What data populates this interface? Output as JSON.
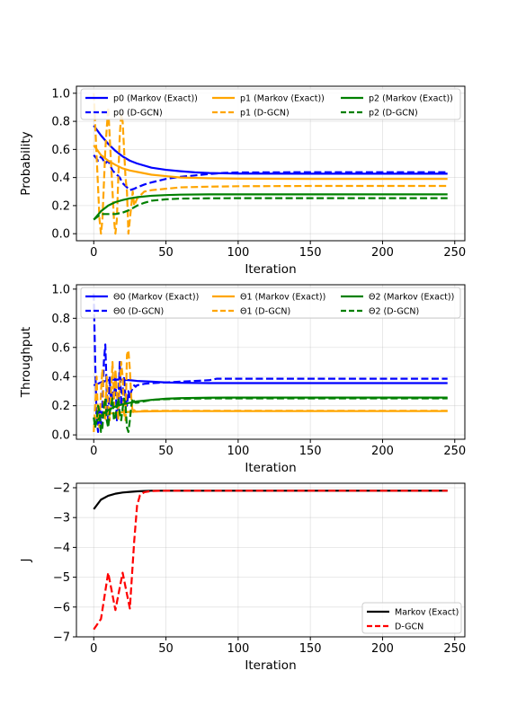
{
  "chart_data": [
    {
      "type": "line",
      "xlabel": "Iteration",
      "ylabel": "Probability",
      "xlim": [
        -12,
        257
      ],
      "ylim": [
        -0.05,
        1.05
      ],
      "xticks": [
        "0",
        "50",
        "100",
        "150",
        "200",
        "250"
      ],
      "yticks": [
        "0.0",
        "0.2",
        "0.4",
        "0.6",
        "0.8",
        "1.0"
      ],
      "grid": true,
      "legend_position": "top",
      "series": [
        {
          "name": "p0 (Markov (Exact))",
          "color": "#0000ff",
          "dash": "solid",
          "x": [
            0,
            5,
            10,
            15,
            20,
            25,
            30,
            40,
            50,
            60,
            70,
            80,
            100,
            150,
            200,
            245
          ],
          "values": [
            0.77,
            0.7,
            0.64,
            0.59,
            0.55,
            0.52,
            0.5,
            0.47,
            0.455,
            0.445,
            0.437,
            0.432,
            0.428,
            0.427,
            0.427,
            0.427
          ]
        },
        {
          "name": "p0 (D-GCN)",
          "color": "#0000ff",
          "dash": "dashed",
          "x": [
            0,
            3,
            5,
            8,
            10,
            13,
            15,
            18,
            20,
            23,
            25,
            28,
            30,
            35,
            40,
            50,
            60,
            70,
            80,
            90,
            100,
            150,
            200,
            245
          ],
          "values": [
            0.56,
            0.52,
            0.55,
            0.5,
            0.52,
            0.45,
            0.43,
            0.4,
            0.36,
            0.33,
            0.31,
            0.32,
            0.33,
            0.35,
            0.365,
            0.39,
            0.405,
            0.415,
            0.425,
            0.433,
            0.436,
            0.438,
            0.438,
            0.438
          ]
        },
        {
          "name": "p1 (Markov (Exact))",
          "color": "#ffa500",
          "dash": "solid",
          "x": [
            0,
            5,
            10,
            15,
            20,
            25,
            30,
            40,
            50,
            60,
            80,
            100,
            150,
            200,
            245
          ],
          "values": [
            0.63,
            0.56,
            0.52,
            0.49,
            0.465,
            0.45,
            0.44,
            0.42,
            0.41,
            0.4,
            0.395,
            0.392,
            0.39,
            0.39,
            0.39
          ]
        },
        {
          "name": "p1 (D-GCN)",
          "color": "#ffa500",
          "dash": "dashed",
          "x": [
            0,
            2,
            4,
            5,
            6,
            8,
            10,
            12,
            13,
            14,
            15,
            16,
            18,
            19,
            20,
            22,
            23,
            24,
            25,
            27,
            28,
            30,
            35,
            40,
            50,
            60,
            80,
            100,
            150,
            200,
            245
          ],
          "values": [
            1.0,
            0.55,
            0.1,
            0.0,
            0.1,
            0.6,
            0.9,
            0.5,
            0.3,
            0.1,
            0.0,
            0.1,
            0.7,
            0.85,
            0.8,
            0.4,
            0.3,
            0.0,
            0.1,
            0.3,
            0.2,
            0.25,
            0.3,
            0.31,
            0.32,
            0.33,
            0.335,
            0.338,
            0.34,
            0.34,
            0.34
          ]
        },
        {
          "name": "p2 (Markov (Exact))",
          "color": "#008000",
          "dash": "solid",
          "x": [
            0,
            5,
            10,
            15,
            20,
            25,
            30,
            40,
            50,
            60,
            80,
            100,
            150,
            200,
            245
          ],
          "values": [
            0.1,
            0.16,
            0.2,
            0.225,
            0.24,
            0.252,
            0.26,
            0.27,
            0.275,
            0.278,
            0.28,
            0.28,
            0.28,
            0.28,
            0.28
          ]
        },
        {
          "name": "p2 (D-GCN)",
          "color": "#008000",
          "dash": "dashed",
          "x": [
            0,
            5,
            10,
            15,
            20,
            25,
            30,
            35,
            40,
            50,
            60,
            80,
            100,
            150,
            200,
            245
          ],
          "values": [
            0.1,
            0.14,
            0.14,
            0.14,
            0.15,
            0.17,
            0.2,
            0.22,
            0.235,
            0.245,
            0.25,
            0.252,
            0.253,
            0.253,
            0.253,
            0.253
          ]
        }
      ]
    },
    {
      "type": "line",
      "xlabel": "Iteration",
      "ylabel": "Throughput",
      "xlim": [
        -12,
        257
      ],
      "ylim": [
        -0.03,
        1.03
      ],
      "xticks": [
        "0",
        "50",
        "100",
        "150",
        "200",
        "250"
      ],
      "yticks": [
        "0.0",
        "0.2",
        "0.4",
        "0.6",
        "0.8",
        "1.0"
      ],
      "grid": true,
      "legend_position": "top",
      "series": [
        {
          "name": "Θ0 (Markov (Exact))",
          "color": "#0000ff",
          "dash": "solid",
          "x": [
            0,
            5,
            10,
            15,
            20,
            25,
            30,
            40,
            50,
            60,
            80,
            100,
            150,
            200,
            245
          ],
          "values": [
            0.34,
            0.36,
            0.375,
            0.38,
            0.378,
            0.375,
            0.37,
            0.365,
            0.36,
            0.357,
            0.355,
            0.355,
            0.355,
            0.355,
            0.355
          ]
        },
        {
          "name": "Θ0 (D-GCN)",
          "color": "#0000ff",
          "dash": "dashed",
          "x": [
            0,
            1,
            2,
            3,
            4,
            5,
            6,
            7,
            8,
            9,
            10,
            11,
            12,
            13,
            14,
            15,
            16,
            17,
            18,
            19,
            20,
            21,
            22,
            23,
            24,
            25,
            26,
            27,
            28,
            29,
            30,
            35,
            40,
            50,
            60,
            70,
            80,
            85,
            100,
            150,
            200,
            245
          ],
          "values": [
            0.97,
            0.5,
            0.1,
            0.02,
            0.2,
            0.05,
            0.2,
            0.5,
            0.62,
            0.3,
            0.1,
            0.4,
            0.2,
            0.3,
            0.25,
            0.4,
            0.1,
            0.2,
            0.5,
            0.2,
            0.3,
            0.4,
            0.25,
            0.2,
            0.3,
            0.25,
            0.3,
            0.32,
            0.34,
            0.33,
            0.34,
            0.35,
            0.355,
            0.36,
            0.365,
            0.37,
            0.375,
            0.385,
            0.385,
            0.385,
            0.385,
            0.385
          ]
        },
        {
          "name": "Θ1 (Markov (Exact))",
          "color": "#ffa500",
          "dash": "solid",
          "x": [
            0,
            5,
            10,
            15,
            20,
            25,
            30,
            40,
            50,
            60,
            80,
            100,
            150,
            200,
            245
          ],
          "values": [
            0.11,
            0.13,
            0.145,
            0.15,
            0.155,
            0.158,
            0.16,
            0.162,
            0.163,
            0.163,
            0.163,
            0.163,
            0.163,
            0.163,
            0.163
          ]
        },
        {
          "name": "Θ1 (D-GCN)",
          "color": "#ffa500",
          "dash": "dashed",
          "x": [
            0,
            1,
            2,
            3,
            4,
            5,
            6,
            7,
            8,
            9,
            10,
            11,
            12,
            13,
            14,
            15,
            16,
            17,
            18,
            19,
            20,
            21,
            22,
            23,
            24,
            25,
            26,
            27,
            28,
            29,
            30,
            35,
            40,
            50,
            60,
            80,
            100,
            150,
            200,
            245
          ],
          "values": [
            0.02,
            0.2,
            0.4,
            0.1,
            0.05,
            0.3,
            0.45,
            0.2,
            0.1,
            0.4,
            0.2,
            0.1,
            0.3,
            0.5,
            0.2,
            0.45,
            0.3,
            0.1,
            0.35,
            0.5,
            0.4,
            0.15,
            0.1,
            0.55,
            0.58,
            0.45,
            0.25,
            0.15,
            0.17,
            0.16,
            0.16,
            0.165,
            0.165,
            0.165,
            0.165,
            0.165,
            0.165,
            0.165,
            0.165,
            0.165
          ]
        },
        {
          "name": "Θ2 (Markov (Exact))",
          "color": "#008000",
          "dash": "solid",
          "x": [
            0,
            5,
            10,
            15,
            20,
            25,
            30,
            40,
            50,
            60,
            80,
            100,
            150,
            200,
            245
          ],
          "values": [
            0.07,
            0.13,
            0.17,
            0.195,
            0.21,
            0.22,
            0.23,
            0.24,
            0.248,
            0.252,
            0.255,
            0.256,
            0.256,
            0.256,
            0.256
          ]
        },
        {
          "name": "Θ2 (D-GCN)",
          "color": "#008000",
          "dash": "dashed",
          "x": [
            0,
            1,
            2,
            3,
            4,
            5,
            6,
            7,
            8,
            9,
            10,
            11,
            12,
            13,
            14,
            15,
            16,
            17,
            18,
            19,
            20,
            21,
            22,
            23,
            24,
            25,
            26,
            27,
            28,
            29,
            30,
            35,
            40,
            50,
            60,
            80,
            100,
            150,
            200,
            245
          ],
          "values": [
            0.12,
            0.05,
            0.1,
            0.2,
            0.15,
            0.02,
            0.05,
            0.2,
            0.25,
            0.1,
            0.05,
            0.15,
            0.2,
            0.25,
            0.1,
            0.12,
            0.2,
            0.25,
            0.15,
            0.1,
            0.18,
            0.25,
            0.2,
            0.05,
            0.02,
            0.1,
            0.2,
            0.25,
            0.23,
            0.22,
            0.22,
            0.23,
            0.24,
            0.245,
            0.248,
            0.25,
            0.25,
            0.25,
            0.25,
            0.25
          ]
        }
      ]
    },
    {
      "type": "line",
      "xlabel": "Iteration",
      "ylabel": "J",
      "xlim": [
        -12,
        257
      ],
      "ylim": [
        -7.0,
        -1.85
      ],
      "xticks": [
        "0",
        "50",
        "100",
        "150",
        "200",
        "250"
      ],
      "yticks": [
        "−7",
        "−6",
        "−5",
        "−4",
        "−3",
        "−2"
      ],
      "grid": true,
      "legend_position": "lower right",
      "series": [
        {
          "name": "Markov (Exact)",
          "color": "#000000",
          "dash": "solid",
          "x": [
            0,
            5,
            10,
            15,
            20,
            25,
            30,
            35,
            40,
            50,
            100,
            150,
            200,
            245
          ],
          "values": [
            -2.72,
            -2.4,
            -2.27,
            -2.2,
            -2.16,
            -2.14,
            -2.12,
            -2.11,
            -2.1,
            -2.1,
            -2.1,
            -2.1,
            -2.1,
            -2.1
          ]
        },
        {
          "name": "D-GCN",
          "color": "#ff0000",
          "dash": "dashed",
          "x": [
            0,
            5,
            10,
            15,
            20,
            25,
            28,
            30,
            32,
            35,
            40,
            50,
            100,
            150,
            200,
            245
          ],
          "values": [
            -6.75,
            -6.4,
            -4.85,
            -6.1,
            -4.85,
            -6.05,
            -3.8,
            -2.6,
            -2.25,
            -2.15,
            -2.11,
            -2.1,
            -2.1,
            -2.1,
            -2.1,
            -2.1
          ]
        }
      ]
    }
  ]
}
